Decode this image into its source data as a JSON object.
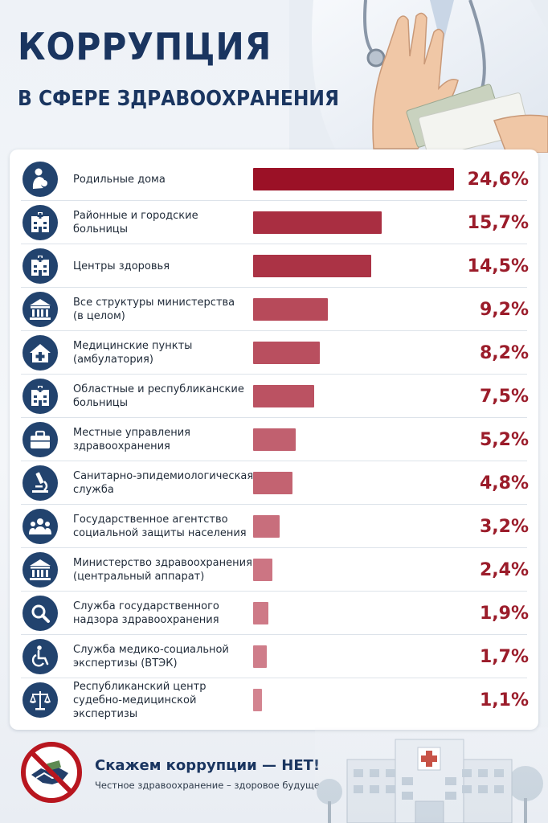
{
  "header": {
    "title": "КОРРУПЦИЯ",
    "subtitle": "В СФЕРЕ ЗДРАВООХРАНЕНИЯ"
  },
  "colors": {
    "title": "#1a3560",
    "icon_circle": "#22436e",
    "value_text": "#9b1c2a",
    "bar_dark": "#9b1126",
    "bar_light": "#e2a3ad"
  },
  "chart_data": {
    "type": "bar",
    "orientation": "horizontal",
    "unit": "%",
    "xlim": [
      0,
      24.6
    ],
    "grid": false,
    "categories": [
      "Родильные дома",
      "Районные и городские\nбольницы",
      "Центры здоровья",
      "Все структуры министерства\n(в целом)",
      "Медицинские пункты\n(амбулатория)",
      "Областные и республиканские\nбольницы",
      "Местные управления\nздравоохранения",
      "Санитарно-эпидемиологическая\nслужба",
      "Государственное агентство\nсоциальной защиты населения",
      "Министерство здравоохранения\n(центральный аппарат)",
      "Служба государственного\nнадзора здравоохранения",
      "Служба медико-социальной\nэкспертизы (ВТЭК)",
      "Республиканский центр\nсудебно-медицинской экспертизы"
    ],
    "values": [
      24.6,
      15.7,
      14.5,
      9.2,
      8.2,
      7.5,
      5.2,
      4.8,
      3.2,
      2.4,
      1.9,
      1.7,
      1.1
    ],
    "value_labels": [
      "24,6%",
      "15,7%",
      "14,5%",
      "9,2%",
      "8,2%",
      "7,5%",
      "5,2%",
      "4,8%",
      "3,2%",
      "2,4%",
      "1,9%",
      "1,7%",
      "1,1%"
    ],
    "icons": [
      "mother-baby-icon",
      "hospital-building-icon",
      "hospital-building-icon",
      "government-building-icon",
      "medical-house-icon",
      "hospital-building-icon",
      "briefcase-icon",
      "microscope-icon",
      "people-group-icon",
      "government-building-icon",
      "magnifier-icon",
      "wheelchair-icon",
      "scales-icon"
    ]
  },
  "footer": {
    "slogan": "Скажем коррупции — НЕТ!",
    "tagline": "Честное здравоохранение – здоровое будущее.",
    "sign_icon": "no-bribe-handshake-icon"
  }
}
